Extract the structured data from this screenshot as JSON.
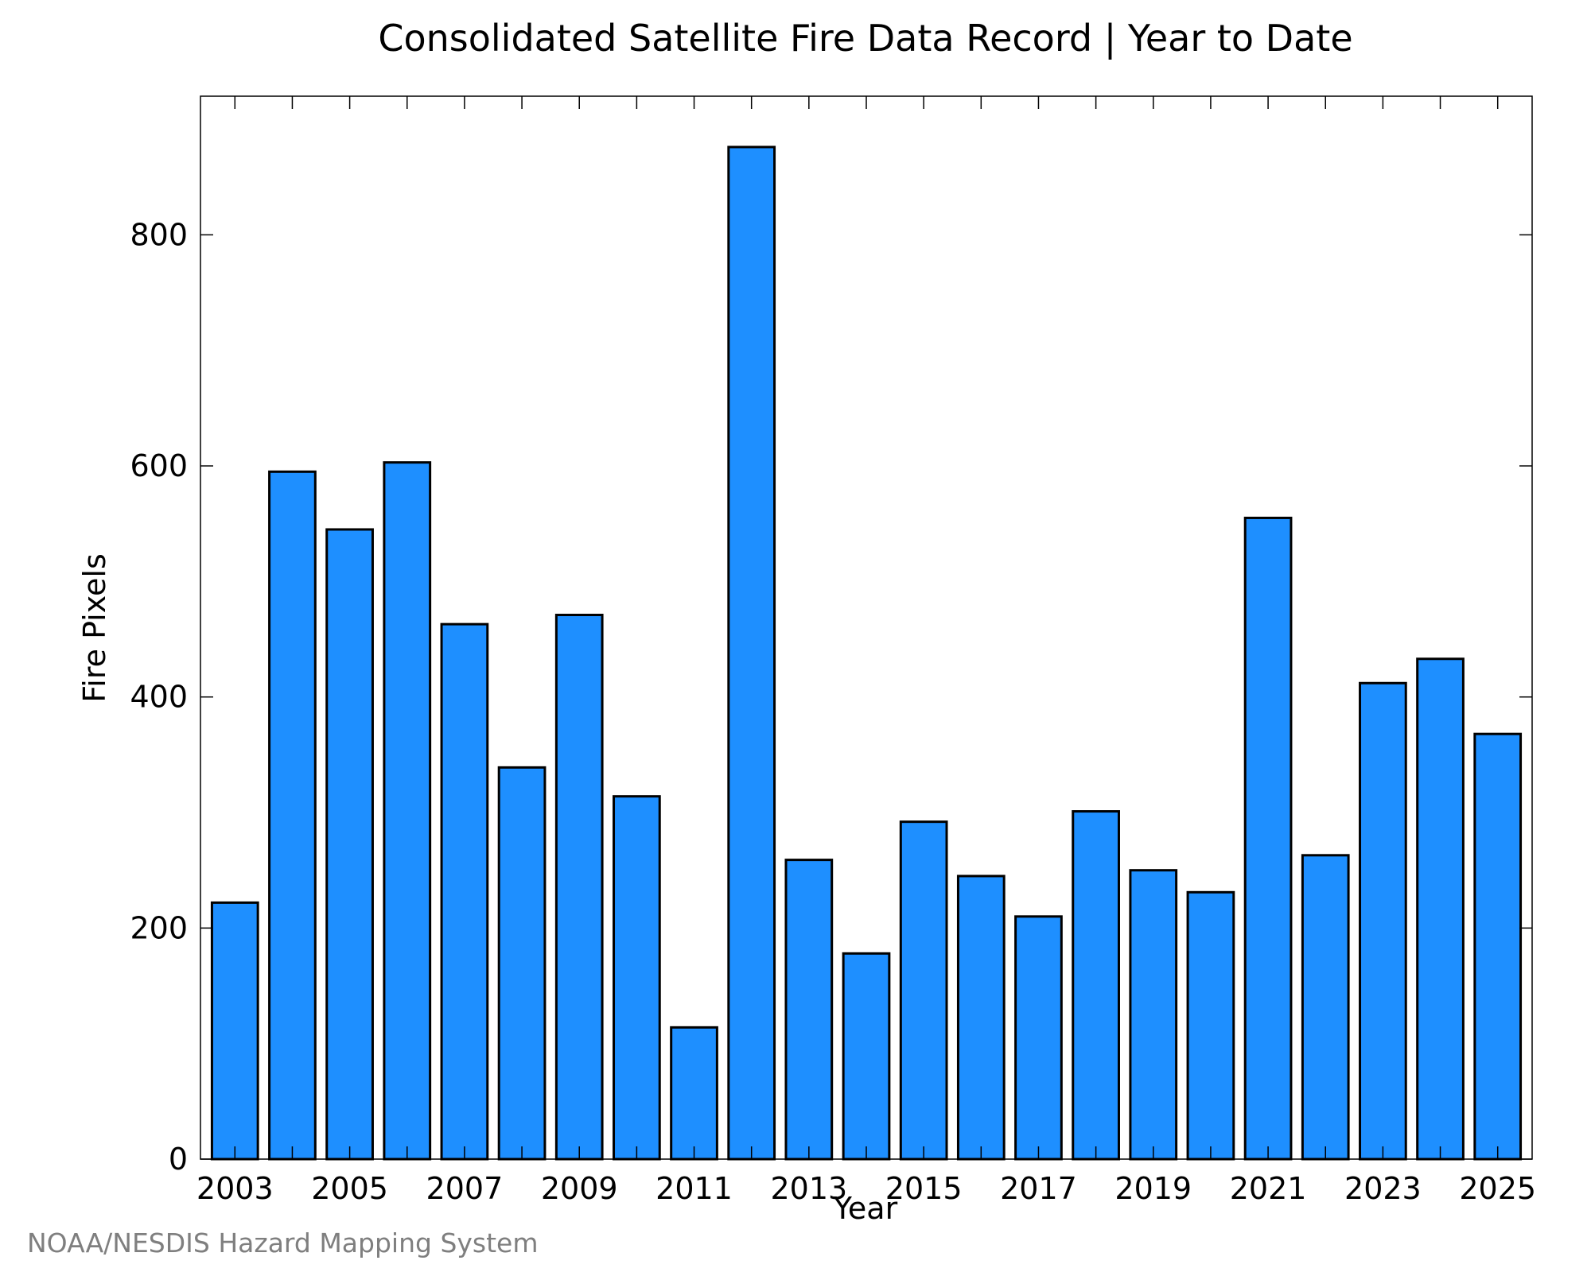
{
  "chart_data": {
    "type": "bar",
    "title": "Consolidated Satellite Fire Data Record | Year to Date",
    "xlabel": "Year",
    "ylabel": "Fire Pixels",
    "credit": "NOAA/NESDIS Hazard Mapping System",
    "x": [
      2003,
      2004,
      2005,
      2006,
      2007,
      2008,
      2009,
      2010,
      2011,
      2012,
      2013,
      2014,
      2015,
      2016,
      2017,
      2018,
      2019,
      2020,
      2021,
      2022,
      2023,
      2024,
      2025
    ],
    "values": [
      222,
      595,
      545,
      603,
      463,
      339,
      471,
      314,
      114,
      876,
      259,
      178,
      292,
      245,
      210,
      301,
      250,
      231,
      555,
      263,
      412,
      433,
      368
    ],
    "xticks": [
      "2003",
      "2005",
      "2007",
      "2009",
      "2011",
      "2013",
      "2015",
      "2017",
      "2019",
      "2021",
      "2023",
      "2025"
    ],
    "yticks": [
      "0",
      "200",
      "400",
      "600",
      "800"
    ],
    "ylim": [
      0,
      920
    ],
    "xlim": [
      2002.4,
      2025.6
    ],
    "bar_color": "#1e8fff",
    "bar_edge_color": "#000000",
    "grid": false,
    "legend": "none"
  }
}
